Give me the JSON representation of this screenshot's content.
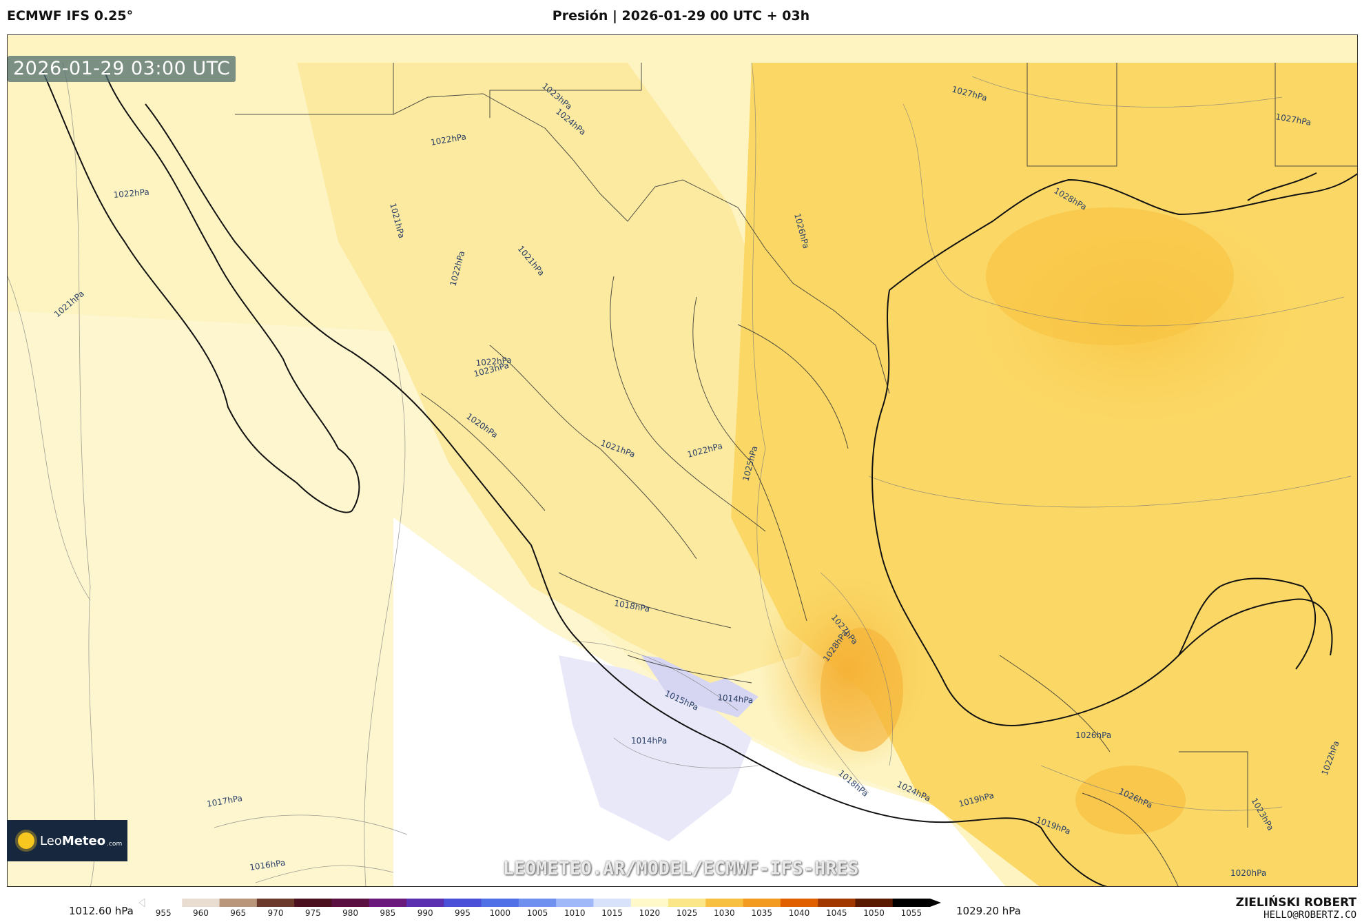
{
  "header": {
    "model": "ECMWF IFS 0.25°",
    "title": "Presión | 2026-01-29 00 UTC + 03h"
  },
  "map": {
    "valid_time": "2026-01-29 03:00 UTC",
    "isobar_labels": [
      "1027hPa",
      "1027hPa",
      "1028hPa",
      "1026hPa",
      "1023hPa",
      "1024hPa",
      "1022hPa",
      "1021hPa",
      "1022hPa",
      "1022hPa",
      "1021hPa",
      "1021hPa",
      "1022hPa",
      "1023hPa",
      "1020hPa",
      "1021hPa",
      "1022hPa",
      "1025hPa",
      "1018hPa",
      "1027hPa",
      "1028hPa",
      "1015hPa",
      "1014hPa",
      "1014hPa",
      "1026hPa",
      "1023hPa",
      "1022hPa",
      "1017hPa",
      "1018hPa",
      "1024hPa",
      "1019hPa",
      "1026hPa",
      "1019hPa",
      "1016hPa",
      "1020hPa"
    ],
    "colors": {
      "high": "#f8c040",
      "mid": "#fbe78a",
      "low": "#fdf6c8",
      "lowest": "#e6e6f7",
      "coast": "#111111",
      "border": "#333333"
    }
  },
  "logo": {
    "brand_light": "Leo",
    "brand_bold": "Meteo",
    "suffix": ".com"
  },
  "watermark": "LEOMETEO.AR/MODEL/ECMWF-IFS-HRES",
  "colorbar": {
    "min_label": "1012.60 hPa",
    "max_label": "1029.20 hPa",
    "ticks": [
      "955",
      "960",
      "965",
      "970",
      "975",
      "980",
      "985",
      "990",
      "995",
      "1000",
      "1005",
      "1010",
      "1015",
      "1020",
      "1025",
      "1030",
      "1035",
      "1040",
      "1045",
      "1050",
      "1055"
    ],
    "colors": [
      "#ffffff",
      "#e8ddd0",
      "#b9957a",
      "#6b3a2a",
      "#4a1020",
      "#5a1040",
      "#6a1a7a",
      "#5a2fb0",
      "#4a50d8",
      "#5070e8",
      "#7090f0",
      "#a0b8f8",
      "#d8e2fb",
      "#fff8c8",
      "#fbe78a",
      "#f8c040",
      "#f39a20",
      "#e06000",
      "#a03800",
      "#5a1a00",
      "#000000"
    ]
  },
  "credits": {
    "author": "ZIELIŃSKI ROBERT",
    "email": "HELLO@ROBERTZ.CO"
  }
}
